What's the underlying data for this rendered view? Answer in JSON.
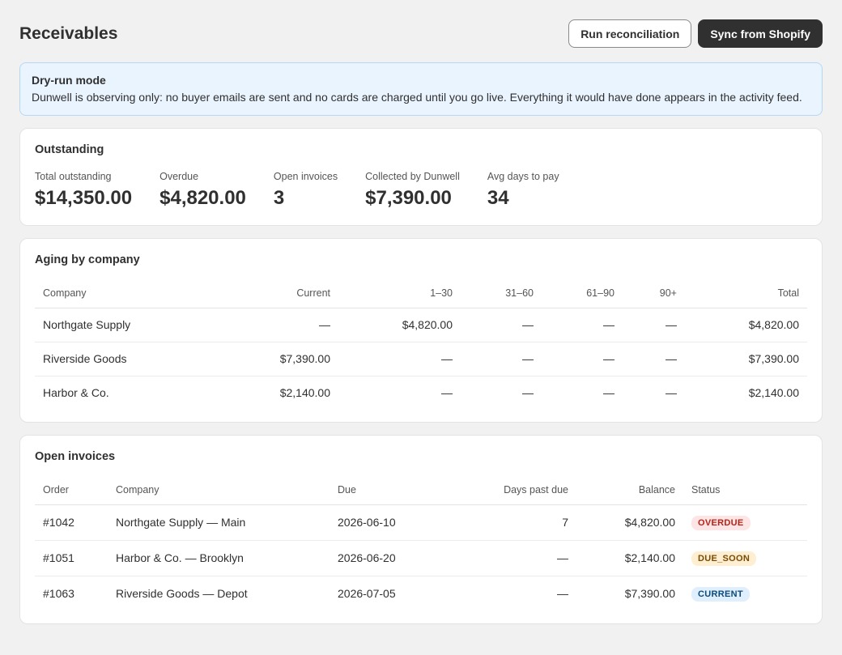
{
  "header": {
    "title": "Receivables",
    "buttons": [
      "Run reconciliation",
      "Sync from Shopify"
    ]
  },
  "banner": {
    "title": "Dry-run mode",
    "text": "Dunwell is observing only: no buyer emails are sent and no cards are charged until you go live. Everything it would have done appears in the activity feed."
  },
  "outstanding": {
    "title": "Outstanding",
    "metrics": [
      {
        "label": "Total outstanding",
        "value": "$14,350.00"
      },
      {
        "label": "Overdue",
        "value": "$4,820.00"
      },
      {
        "label": "Open invoices",
        "value": "3"
      },
      {
        "label": "Collected by Dunwell",
        "value": "$7,390.00"
      },
      {
        "label": "Avg days to pay",
        "value": "34"
      }
    ]
  },
  "aging": {
    "title": "Aging by company",
    "columns": [
      "Company",
      "Current",
      "1–30",
      "31–60",
      "61–90",
      "90+",
      "Total"
    ],
    "rows": [
      [
        "Northgate Supply",
        "—",
        "$4,820.00",
        "—",
        "—",
        "—",
        "$4,820.00"
      ],
      [
        "Riverside Goods",
        "$7,390.00",
        "—",
        "—",
        "—",
        "—",
        "$7,390.00"
      ],
      [
        "Harbor & Co.",
        "$2,140.00",
        "—",
        "—",
        "—",
        "—",
        "$2,140.00"
      ]
    ]
  },
  "invoices": {
    "title": "Open invoices",
    "columns": [
      "Order",
      "Company",
      "Due",
      "Days past due",
      "Balance",
      "Status"
    ],
    "rows": [
      [
        "#1042",
        "Northgate Supply — Main",
        "2026-06-10",
        "7",
        "$4,820.00",
        "OVERDUE"
      ],
      [
        "#1051",
        "Harbor & Co. — Brooklyn",
        "2026-06-20",
        "—",
        "$2,140.00",
        "DUE_SOON"
      ],
      [
        "#1063",
        "Riverside Goods — Depot",
        "2026-07-05",
        "—",
        "$7,390.00",
        "CURRENT"
      ]
    ]
  }
}
